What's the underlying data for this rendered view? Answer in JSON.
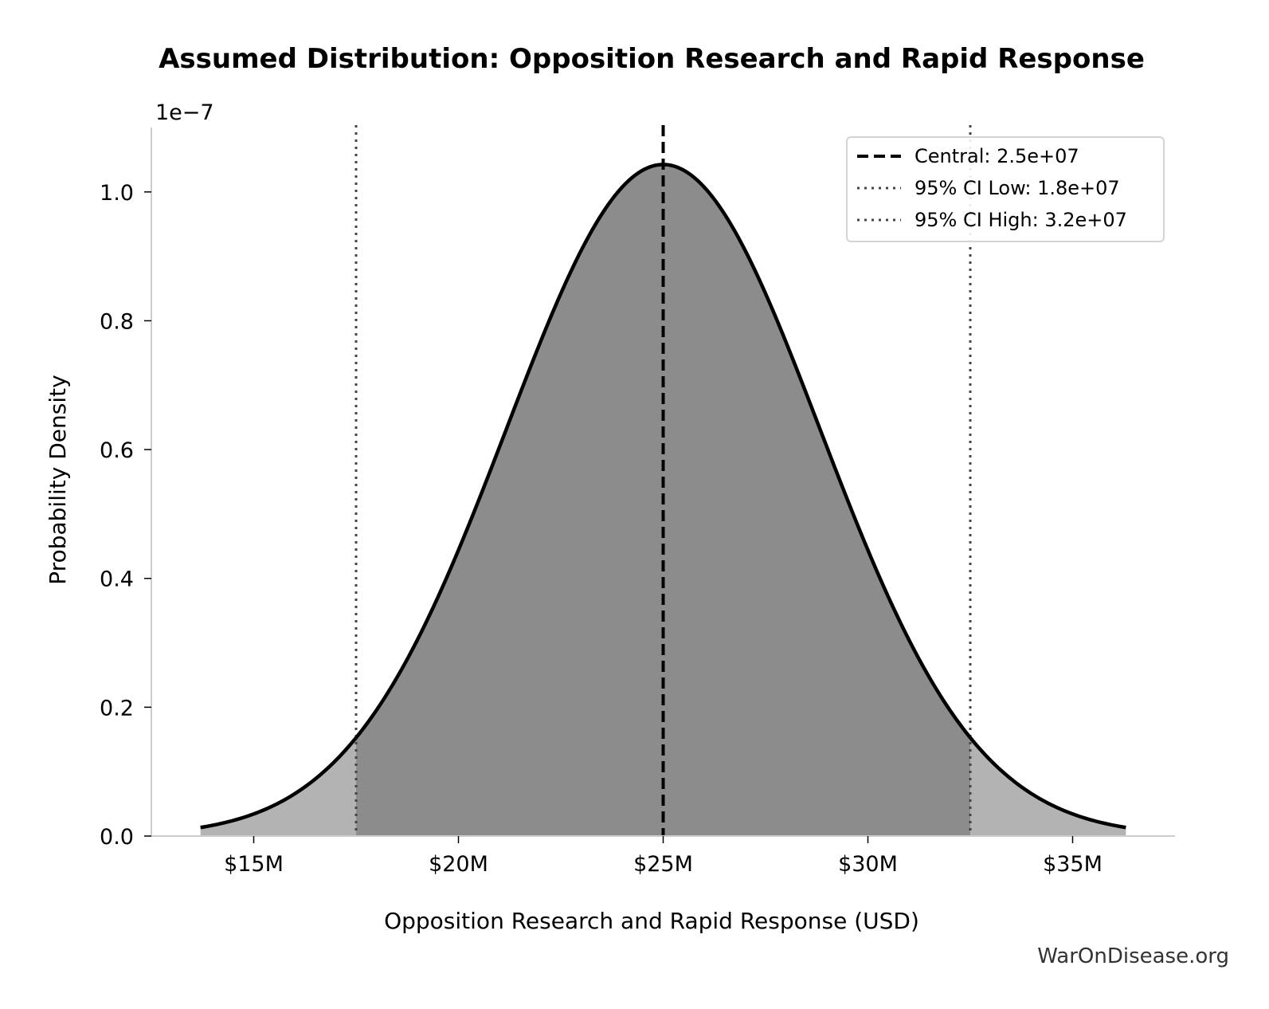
{
  "chart_data": {
    "type": "area",
    "title": "Assumed Distribution: Opposition Research and Rapid Response",
    "xlabel": "Opposition Research and Rapid Response (USD)",
    "ylabel": "Probability Density",
    "y_scale_label": "1e−7",
    "distribution": "normal",
    "mean": 25000000,
    "sd": 3826530,
    "x_range": [
      13700000,
      36300000
    ],
    "xlim": [
      12500000,
      37500000
    ],
    "ylim": [
      0,
      1.1e-07
    ],
    "xticks": [
      15000000,
      20000000,
      25000000,
      30000000,
      35000000
    ],
    "xtick_labels": [
      "$15M",
      "$20M",
      "$25M",
      "$30M",
      "$35M"
    ],
    "yticks": [
      0,
      2e-08,
      4e-08,
      6e-08,
      8e-08,
      1e-07
    ],
    "ytick_labels": [
      "0.0",
      "0.2",
      "0.4",
      "0.6",
      "0.8",
      "1.0"
    ],
    "reference_lines": [
      {
        "label": "Central: 2.5e+07",
        "x": 25000000,
        "style": "dashed",
        "color": "#000000"
      },
      {
        "label": "95% CI Low: 1.8e+07",
        "x": 17500000,
        "style": "dotted",
        "color": "#444444"
      },
      {
        "label": "95% CI High: 3.2e+07",
        "x": 32500000,
        "style": "dotted",
        "color": "#444444"
      }
    ],
    "fill_ci_color": "#8c8c8c",
    "fill_tail_color": "#b3b3b3",
    "curve_color": "#000000",
    "legend_position": "top-right",
    "grid": false
  },
  "watermark": "WarOnDisease.org"
}
